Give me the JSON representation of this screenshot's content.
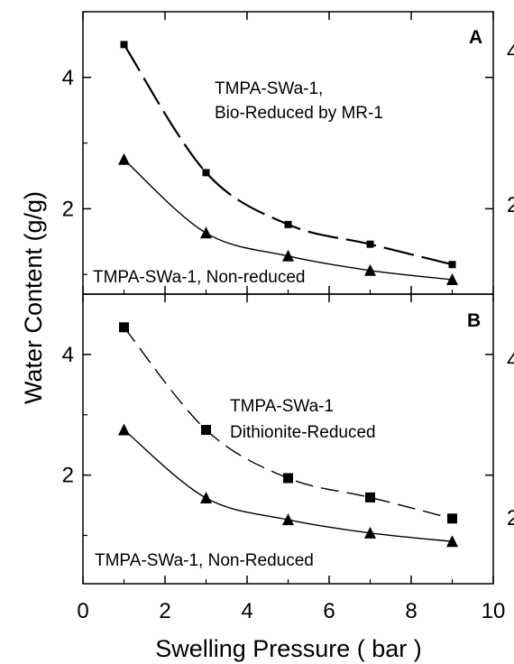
{
  "chart_data": [
    {
      "type": "line",
      "panel_label": "A",
      "x": [
        1,
        3,
        5,
        7,
        9
      ],
      "series": [
        {
          "name": "TMPA-SWa-1, Bio-Reduced by MR-1",
          "label_lines": [
            "TMPA-SWa-1,",
            "Bio-Reduced by MR-1"
          ],
          "marker": "square",
          "line_style": "long-dash",
          "values": [
            4.5,
            2.55,
            1.76,
            1.46,
            1.15
          ]
        },
        {
          "name": "TMPA-SWa-1, Non-reduced",
          "label_lines": [
            "TMPA-SWa-1, Non-reduced"
          ],
          "marker": "triangle",
          "line_style": "solid",
          "values": [
            2.75,
            1.63,
            1.28,
            1.06,
            0.92
          ]
        }
      ],
      "xlim": [
        0,
        10
      ],
      "ylim": [
        0.7,
        5.0
      ],
      "yticks": [
        2,
        4
      ],
      "grid": false
    },
    {
      "type": "line",
      "panel_label": "B",
      "x": [
        1,
        3,
        5,
        7,
        9
      ],
      "series": [
        {
          "name": "TMPA-SWa-1 Dithionite-Reduced",
          "label_lines": [
            "TMPA-SWa-1",
            "Dithionite-Reduced"
          ],
          "marker": "square",
          "line_style": "dash",
          "values": [
            4.45,
            2.75,
            1.95,
            1.63,
            1.28
          ]
        },
        {
          "name": "TMPA-SWa-1, Non-Reduced",
          "label_lines": [
            "TMPA-SWa-1, Non-Reduced"
          ],
          "marker": "triangle",
          "line_style": "solid",
          "values": [
            2.75,
            1.62,
            1.26,
            1.04,
            0.9
          ]
        }
      ],
      "xlim": [
        0,
        10
      ],
      "ylim": [
        0.2,
        5.0
      ],
      "yticks": [
        2,
        4
      ],
      "grid": false
    }
  ],
  "axes": {
    "xlabel": "Swelling Pressure ( bar )",
    "ylabel": "Water Content (g/g)",
    "xticks": [
      "0",
      "2",
      "4",
      "6",
      "8",
      "10"
    ]
  },
  "edge_fragments": [
    "4",
    "2",
    "4",
    "2"
  ]
}
